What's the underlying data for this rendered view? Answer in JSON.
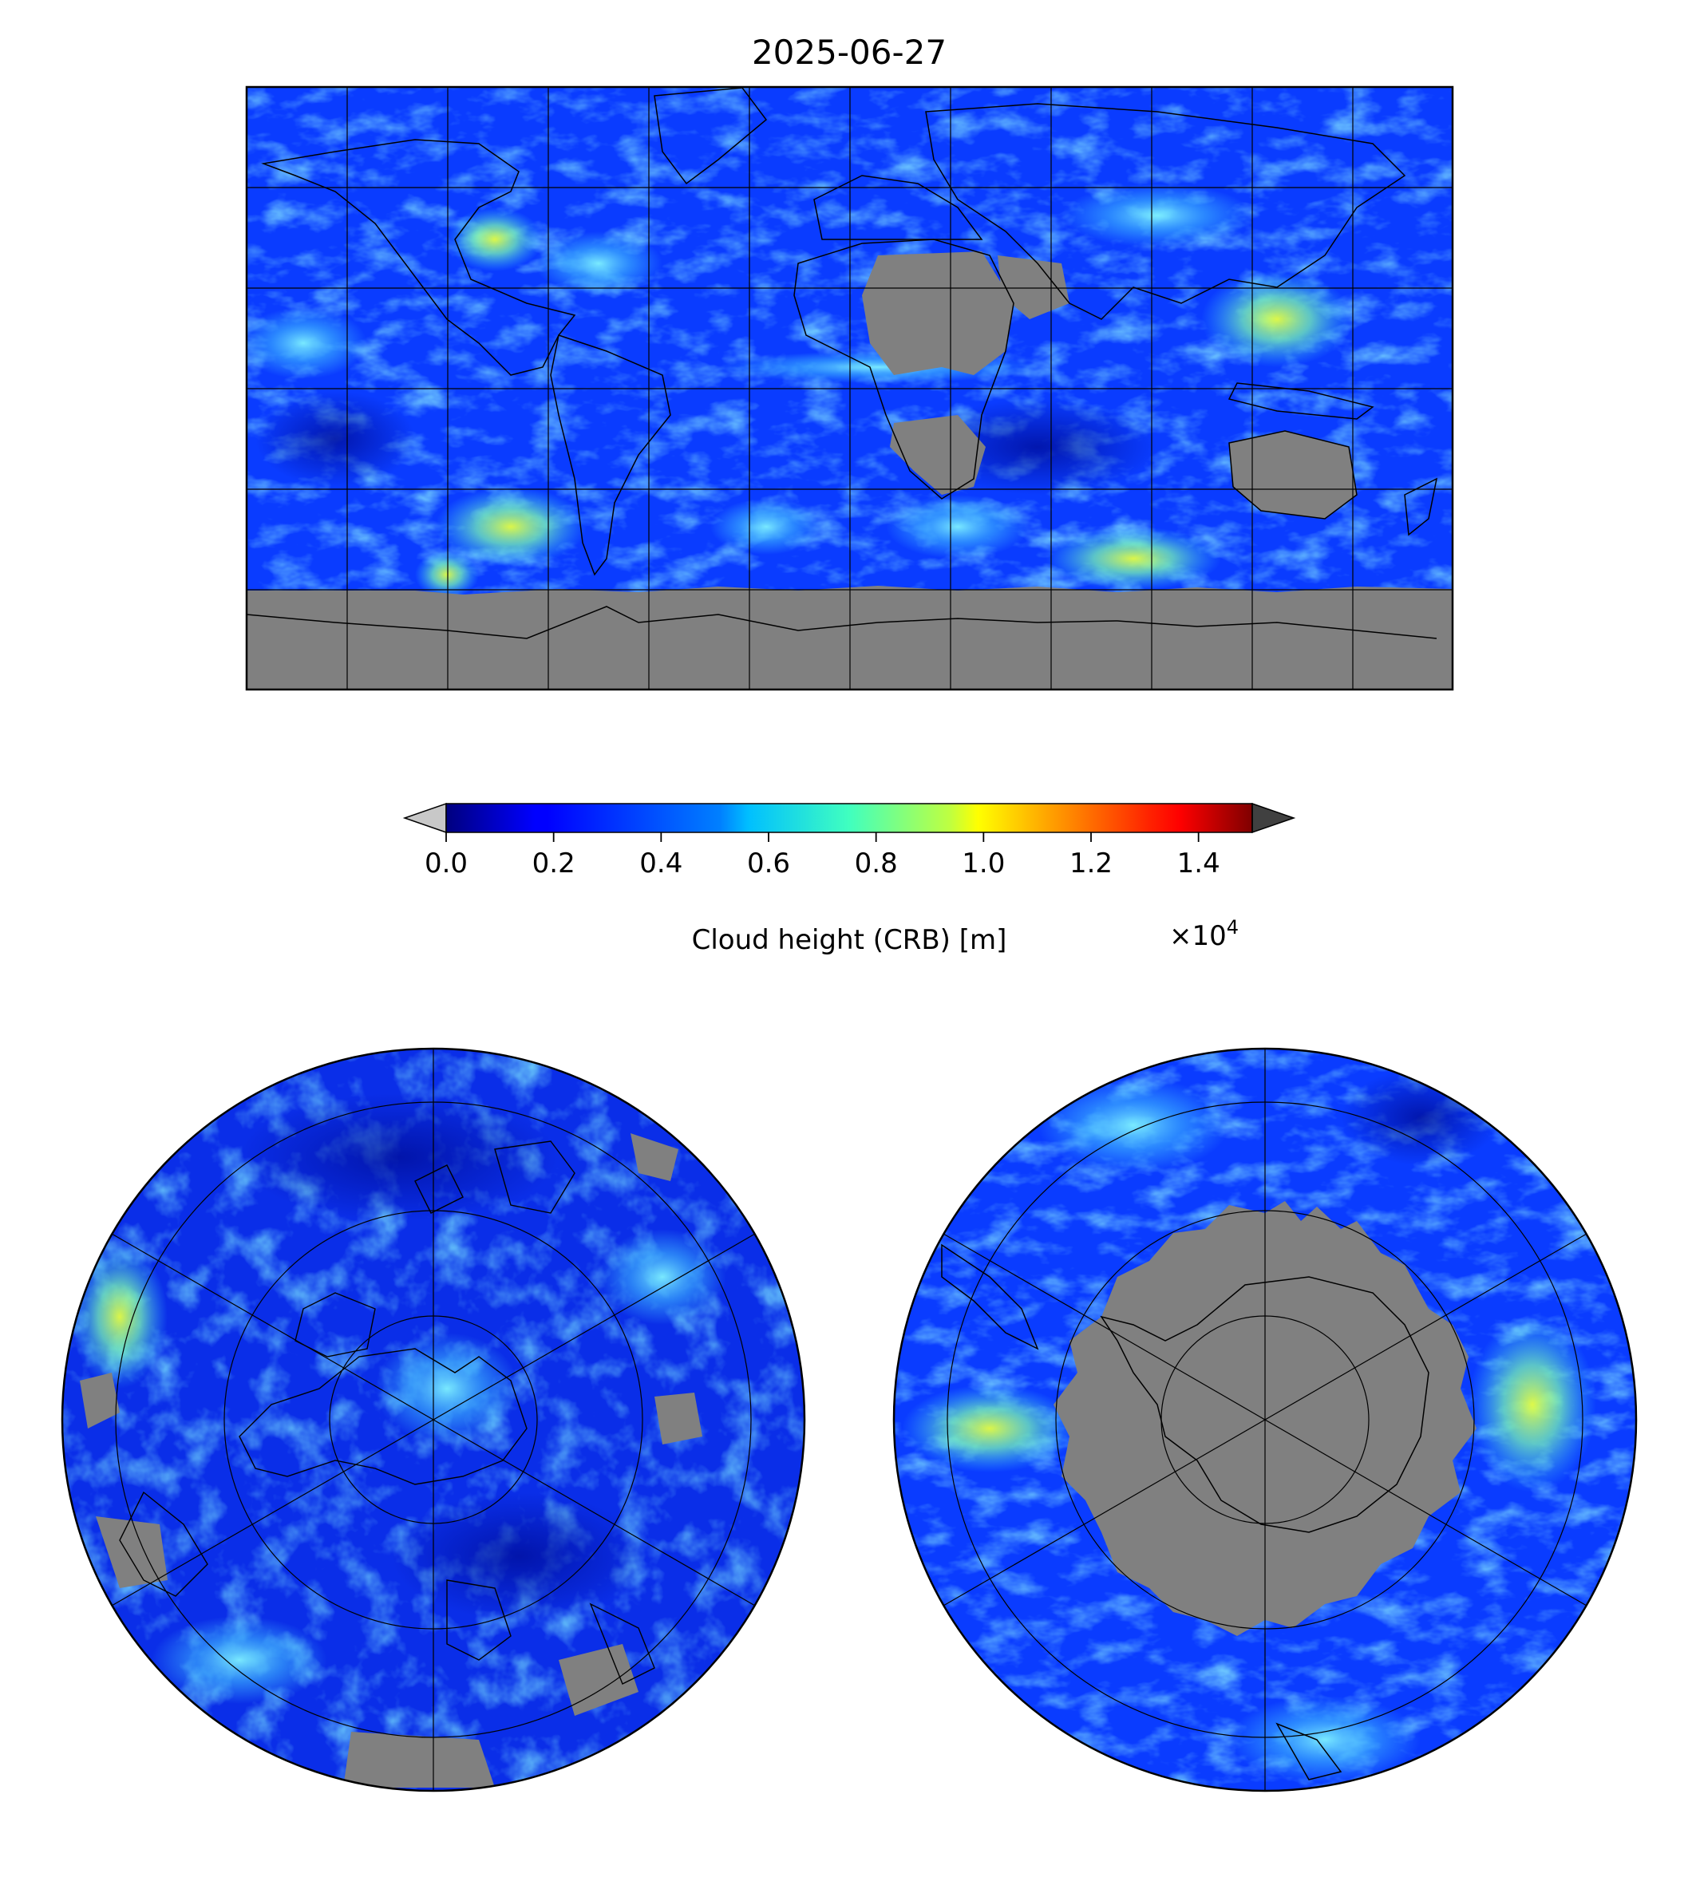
{
  "figure": {
    "title": "2025-06-27"
  },
  "colorbar": {
    "label": "Cloud height (CRB) [m]",
    "multiplier": "×10",
    "multiplier_exp": "4",
    "ticks": [
      "0.0",
      "0.2",
      "0.4",
      "0.6",
      "0.8",
      "1.0",
      "1.2",
      "1.4"
    ],
    "tick_values": [
      0.0,
      0.2,
      0.4,
      0.6,
      0.8,
      1.0,
      1.2,
      1.4
    ],
    "range": [
      0.0,
      1.5
    ],
    "extend": "both",
    "colormap": "jet",
    "under_color": "#c8c8c8",
    "over_color": "#404040",
    "missing_color": "#808080"
  },
  "maps": {
    "global": {
      "projection": "equirectangular",
      "grid_lon_step_deg": 30,
      "grid_lat_step_deg": 30
    },
    "north_polar": {
      "projection": "north-polar-stereographic"
    },
    "south_polar": {
      "projection": "south-polar-stereographic"
    }
  }
}
